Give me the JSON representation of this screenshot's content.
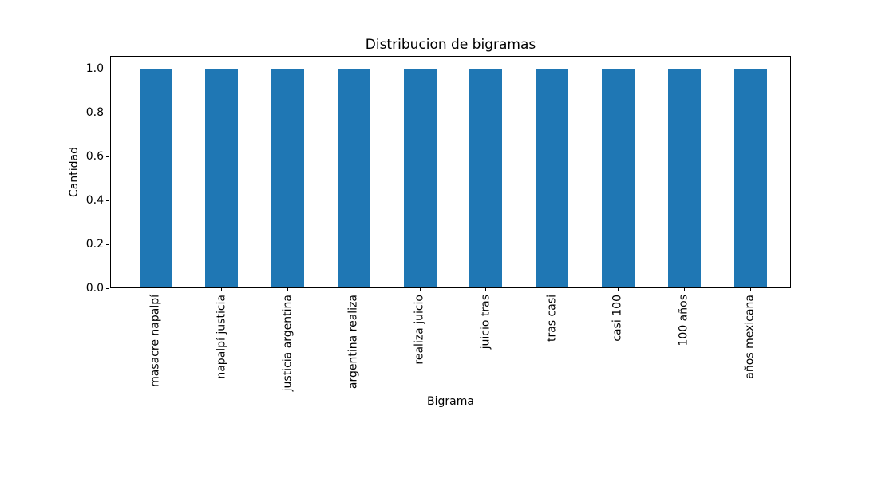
{
  "chart_data": {
    "type": "bar",
    "title": "Distribucion de bigramas",
    "xlabel": "Bigrama",
    "ylabel": "Cantidad",
    "categories": [
      "masacre napalpí",
      "napalpí justicia",
      "justicia argentina",
      "argentina realiza",
      "realiza juicio",
      "juicio tras",
      "tras casi",
      "casi 100",
      "100 años",
      "años mexicana"
    ],
    "values": [
      1,
      1,
      1,
      1,
      1,
      1,
      1,
      1,
      1,
      1
    ],
    "ylim": [
      0,
      1.06
    ],
    "yticks": [
      0.0,
      0.2,
      0.4,
      0.6,
      0.8,
      1.0
    ],
    "ytick_labels": [
      "0.0",
      "0.2",
      "0.4",
      "0.6",
      "0.8",
      "1.0"
    ],
    "bar_color": "#1f77b4",
    "grid": "off",
    "legend": "none",
    "xtick_rotation_deg": 90
  }
}
